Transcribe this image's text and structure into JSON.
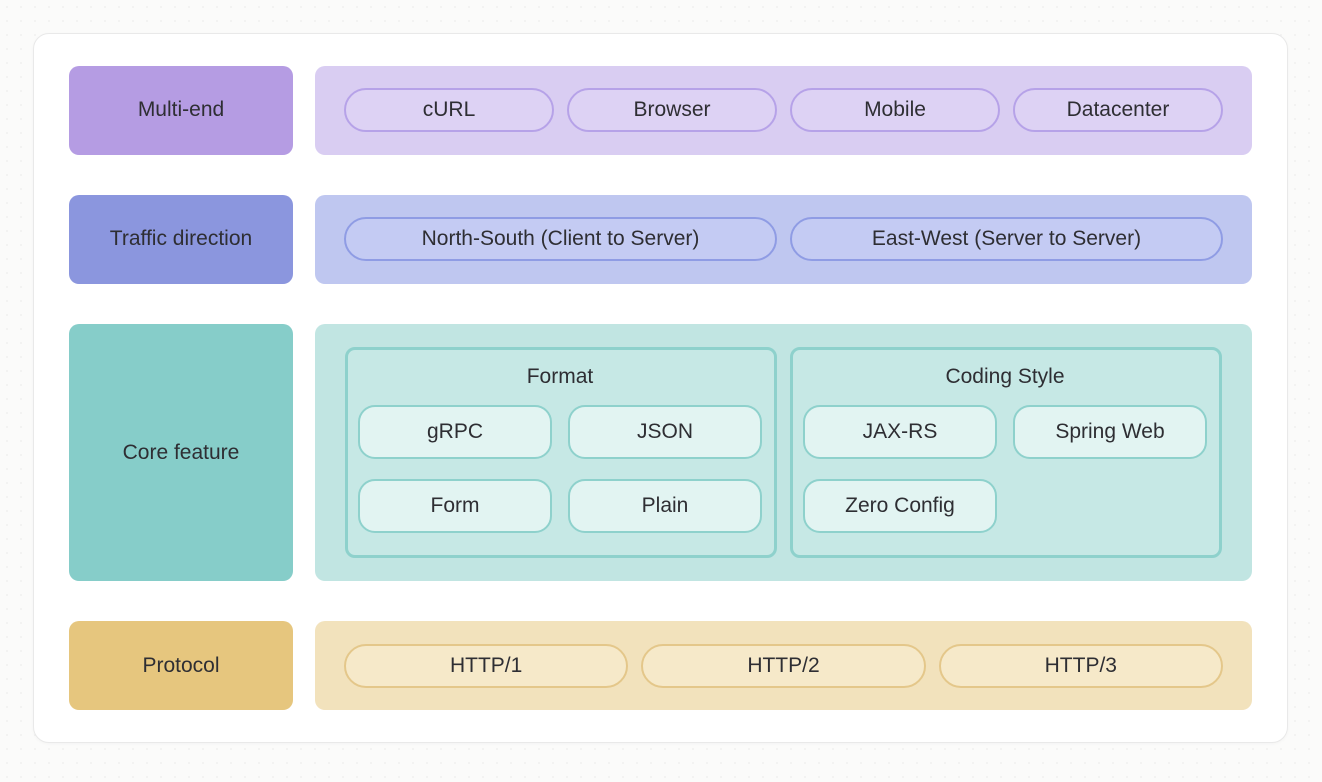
{
  "rows": [
    {
      "id": "multi-end",
      "label": "Multi-end",
      "items": [
        "cURL",
        "Browser",
        "Mobile",
        "Datacenter"
      ]
    },
    {
      "id": "traffic-direction",
      "label": "Traffic direction",
      "items": [
        "North-South (Client to Server)",
        "East-West (Server to Server)"
      ]
    },
    {
      "id": "core-feature",
      "label": "Core feature",
      "groups": [
        {
          "title": "Format",
          "items": [
            "gRPC",
            "JSON",
            "Form",
            "Plain"
          ]
        },
        {
          "title": "Coding Style",
          "items": [
            "JAX-RS",
            "Spring Web",
            "Zero Config"
          ]
        }
      ]
    },
    {
      "id": "protocol",
      "label": "Protocol",
      "items": [
        "HTTP/1",
        "HTTP/2",
        "HTTP/3"
      ]
    }
  ],
  "palette": {
    "multi_end_label_bg": "#b59ce3",
    "multi_end_track_bg": "#d9cdf2",
    "multi_end_pill_border": "#b6a2e8",
    "traffic_label_bg": "#8b96de",
    "traffic_track_bg": "#bfc7f0",
    "traffic_pill_border": "#8f9ce4",
    "core_label_bg": "#86cdc9",
    "core_track_bg": "#c1e5e2",
    "core_pill_bg": "#e2f4f2",
    "core_border": "#8ed1cc",
    "protocol_label_bg": "#e6c67e",
    "protocol_track_bg": "#f2e2bc",
    "protocol_pill_border": "#e4c78a",
    "text": "#2e2e33",
    "card_bg": "#ffffff"
  }
}
